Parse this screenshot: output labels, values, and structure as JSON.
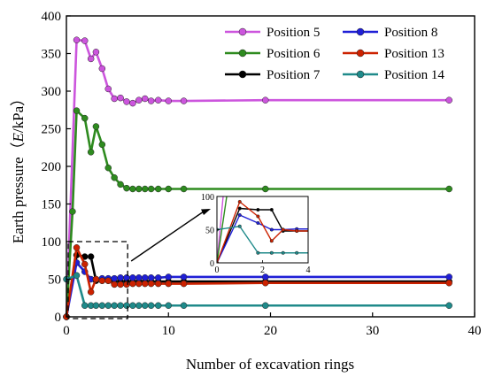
{
  "chart_data": {
    "type": "line",
    "title": "",
    "xlabel": "Number of excavation rings",
    "ylabel_prefix": "Earth pressure（",
    "ylabel_var": "E",
    "ylabel_suffix": "/kPa）",
    "xlim": [
      0,
      40
    ],
    "ylim": [
      0,
      400
    ],
    "xticks": [
      0,
      10,
      20,
      30,
      40
    ],
    "yticks": [
      0,
      50,
      100,
      150,
      200,
      250,
      300,
      350,
      400
    ],
    "grid": false,
    "legend_placement": "top-right",
    "series": [
      {
        "name": "Position 5",
        "color": "#cc55dd",
        "x": [
          0,
          1,
          1.8,
          2.4,
          2.9,
          3.5,
          4.1,
          4.7,
          5.3,
          5.9,
          6.5,
          7.1,
          7.7,
          8.3,
          9.0,
          10.0,
          11.5,
          19.5,
          37.5
        ],
        "y": [
          0,
          368,
          367,
          343,
          352,
          330,
          303,
          290,
          291,
          286,
          284,
          288,
          290,
          287,
          288,
          287,
          287,
          288,
          288
        ]
      },
      {
        "name": "Position 6",
        "color": "#2e8b1f",
        "x": [
          0,
          0.6,
          1,
          1.8,
          2.4,
          2.9,
          3.5,
          4.1,
          4.7,
          5.3,
          5.9,
          6.5,
          7.1,
          7.7,
          8.3,
          9.0,
          10.0,
          11.5,
          19.5,
          37.5
        ],
        "y": [
          0,
          140,
          274,
          264,
          219,
          253,
          229,
          198,
          185,
          176,
          171,
          170,
          170,
          170,
          170,
          170,
          170,
          170,
          170,
          170
        ]
      },
      {
        "name": "Position 7",
        "color": "#000000",
        "x": [
          0,
          1,
          1.8,
          2.4,
          2.9,
          3.5,
          4.1,
          4.7,
          5.3,
          5.9,
          6.5,
          7.1,
          7.7,
          8.3,
          9.0,
          10.0,
          11.5,
          19.5,
          37.5
        ],
        "y": [
          0,
          82,
          80,
          80,
          48,
          48,
          48,
          47,
          47,
          47,
          47,
          47,
          47,
          47,
          47,
          47,
          47,
          47,
          47
        ]
      },
      {
        "name": "Position 8",
        "color": "#1f1fd6",
        "x": [
          0,
          1,
          1.8,
          2.4,
          2.9,
          3.5,
          4.1,
          4.7,
          5.3,
          5.9,
          6.5,
          7.1,
          7.7,
          8.3,
          9.0,
          10.0,
          11.5,
          19.5,
          37.5
        ],
        "y": [
          0,
          72,
          60,
          50,
          50,
          51,
          51,
          51,
          52,
          52,
          52,
          52,
          52,
          52,
          52,
          53,
          53,
          53,
          53
        ]
      },
      {
        "name": "Position 13",
        "color": "#cc2200",
        "x": [
          0,
          1,
          1.8,
          2.4,
          2.9,
          3.5,
          4.1,
          4.7,
          5.3,
          5.9,
          6.5,
          7.1,
          7.7,
          8.3,
          9.0,
          10.0,
          11.5,
          19.5,
          37.5
        ],
        "y": [
          0,
          92,
          70,
          33,
          50,
          48,
          48,
          43,
          43,
          43,
          44,
          44,
          44,
          44,
          44,
          44,
          44,
          45,
          45
        ]
      },
      {
        "name": "Position 14",
        "color": "#1f8a8a",
        "x": [
          0,
          1,
          1.8,
          2.4,
          2.9,
          3.5,
          4.1,
          4.7,
          5.3,
          5.9,
          6.5,
          7.1,
          7.7,
          8.3,
          9.0,
          10.0,
          11.5,
          19.5,
          37.5
        ],
        "y": [
          50,
          55,
          15,
          15,
          15,
          15,
          15,
          15,
          15,
          15,
          15,
          15,
          15,
          15,
          15,
          15,
          15,
          15,
          15
        ]
      }
    ],
    "inset": {
      "xlim": [
        0,
        4
      ],
      "ylim": [
        0,
        100
      ],
      "xticks": [
        0,
        2,
        4
      ],
      "yticks": [
        0,
        50,
        100
      ],
      "zoom_region": {
        "x": [
          0,
          6
        ],
        "y": [
          0,
          100
        ]
      }
    }
  }
}
